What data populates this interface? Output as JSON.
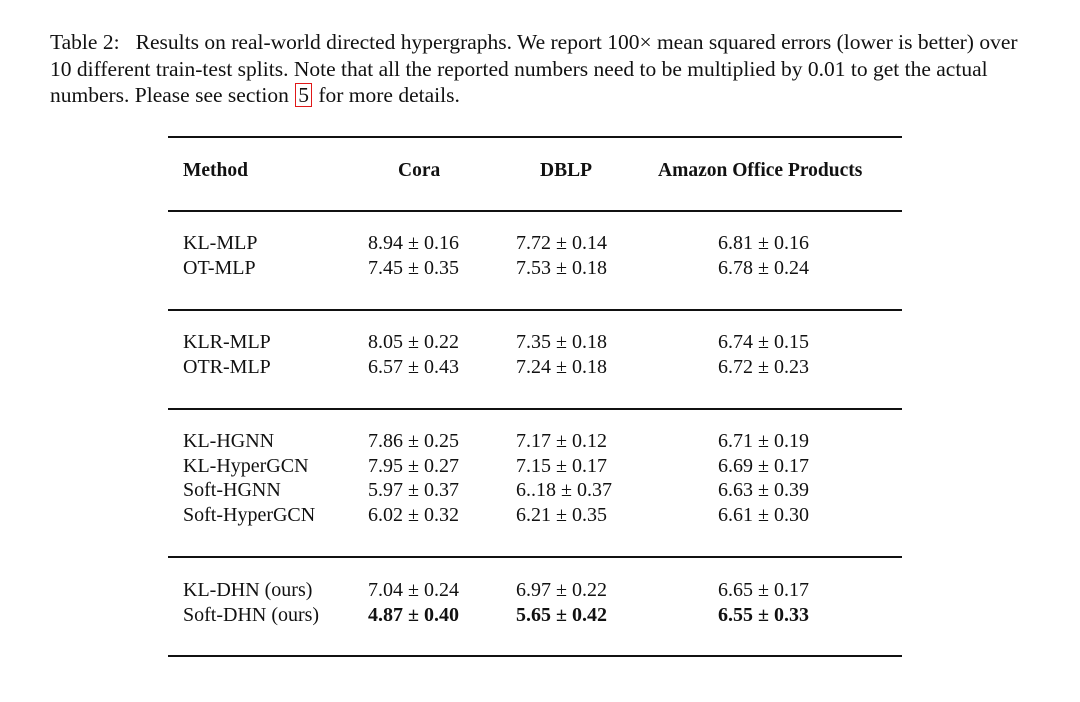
{
  "caption": {
    "label": "Table 2:",
    "text_before_ref": "Results on real-world directed hypergraphs. We report 100× mean squared errors (lower is better) over 10 different train-test splits. Note that all the reported numbers need to be multiplied by 0.01 to get the actual numbers. Please see section",
    "section_ref": "5",
    "text_after_ref": "for more details."
  },
  "table": {
    "headers": [
      "Method",
      "Cora",
      "DBLP",
      "Amazon Office Products"
    ],
    "groups": [
      {
        "rows": [
          {
            "method": "KL-MLP",
            "cora": "8.94 ± 0.16",
            "dblp": "7.72 ± 0.14",
            "amazon": "6.81 ± 0.16"
          },
          {
            "method": "OT-MLP",
            "cora": "7.45 ± 0.35",
            "dblp": "7.53 ± 0.18",
            "amazon": "6.78 ± 0.24"
          }
        ]
      },
      {
        "rows": [
          {
            "method": "KLR-MLP",
            "cora": "8.05 ± 0.22",
            "dblp": "7.35 ± 0.18",
            "amazon": "6.74 ± 0.15"
          },
          {
            "method": "OTR-MLP",
            "cora": "6.57 ± 0.43",
            "dblp": "7.24 ± 0.18",
            "amazon": "6.72 ± 0.23"
          }
        ]
      },
      {
        "rows": [
          {
            "method": "KL-HGNN",
            "cora": "7.86 ± 0.25",
            "dblp": "7.17 ± 0.12",
            "amazon": "6.71 ± 0.19"
          },
          {
            "method": "KL-HyperGCN",
            "cora": "7.95 ± 0.27",
            "dblp": "7.15 ± 0.17",
            "amazon": "6.69 ± 0.17"
          },
          {
            "method": "Soft-HGNN",
            "cora": "5.97 ± 0.37",
            "dblp": "6..18 ± 0.37",
            "amazon": "6.63 ± 0.39"
          },
          {
            "method": "Soft-HyperGCN",
            "cora": "6.02 ± 0.32",
            "dblp": "6.21 ± 0.35",
            "amazon": "6.61 ± 0.30"
          }
        ]
      },
      {
        "rows": [
          {
            "method": "KL-DHN (ours)",
            "cora": "7.04 ± 0.24",
            "dblp": "6.97 ± 0.22",
            "amazon": "6.65 ± 0.17"
          },
          {
            "method": "Soft-DHN (ours)",
            "cora": "4.87 ± 0.40",
            "dblp": "5.65 ± 0.42",
            "amazon": "6.55 ± 0.33",
            "bold": [
              "cora",
              "dblp",
              "amazon"
            ]
          }
        ]
      }
    ]
  }
}
